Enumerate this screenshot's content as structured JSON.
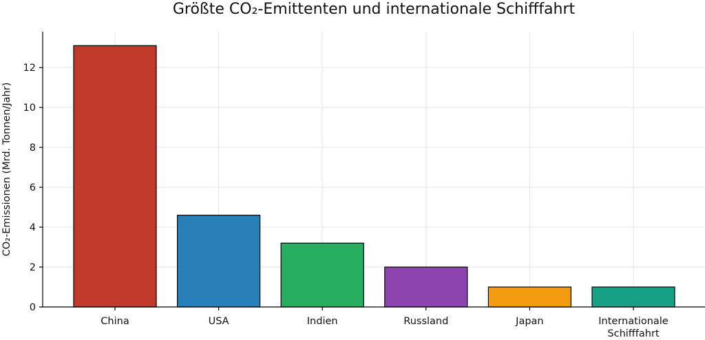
{
  "chart_data": {
    "type": "bar",
    "title": "Größte CO₂-Emittenten und internationale Schifffahrt",
    "xlabel": "",
    "ylabel": "CO₂-Emissionen (Mrd. Tonnen/Jahr)",
    "categories": [
      "China",
      "USA",
      "Indien",
      "Russland",
      "Japan",
      "Internationale\nSchifffahrt"
    ],
    "values": [
      13.1,
      4.6,
      3.2,
      2.0,
      1.0,
      1.0
    ],
    "colors": [
      "#c0392b",
      "#2980b9",
      "#27ae60",
      "#8e44ad",
      "#f39c12",
      "#16a085"
    ],
    "ylim": [
      0,
      13.8
    ],
    "yticks": [
      0,
      2,
      4,
      6,
      8,
      10,
      12
    ],
    "grid": true,
    "legend": "none"
  }
}
